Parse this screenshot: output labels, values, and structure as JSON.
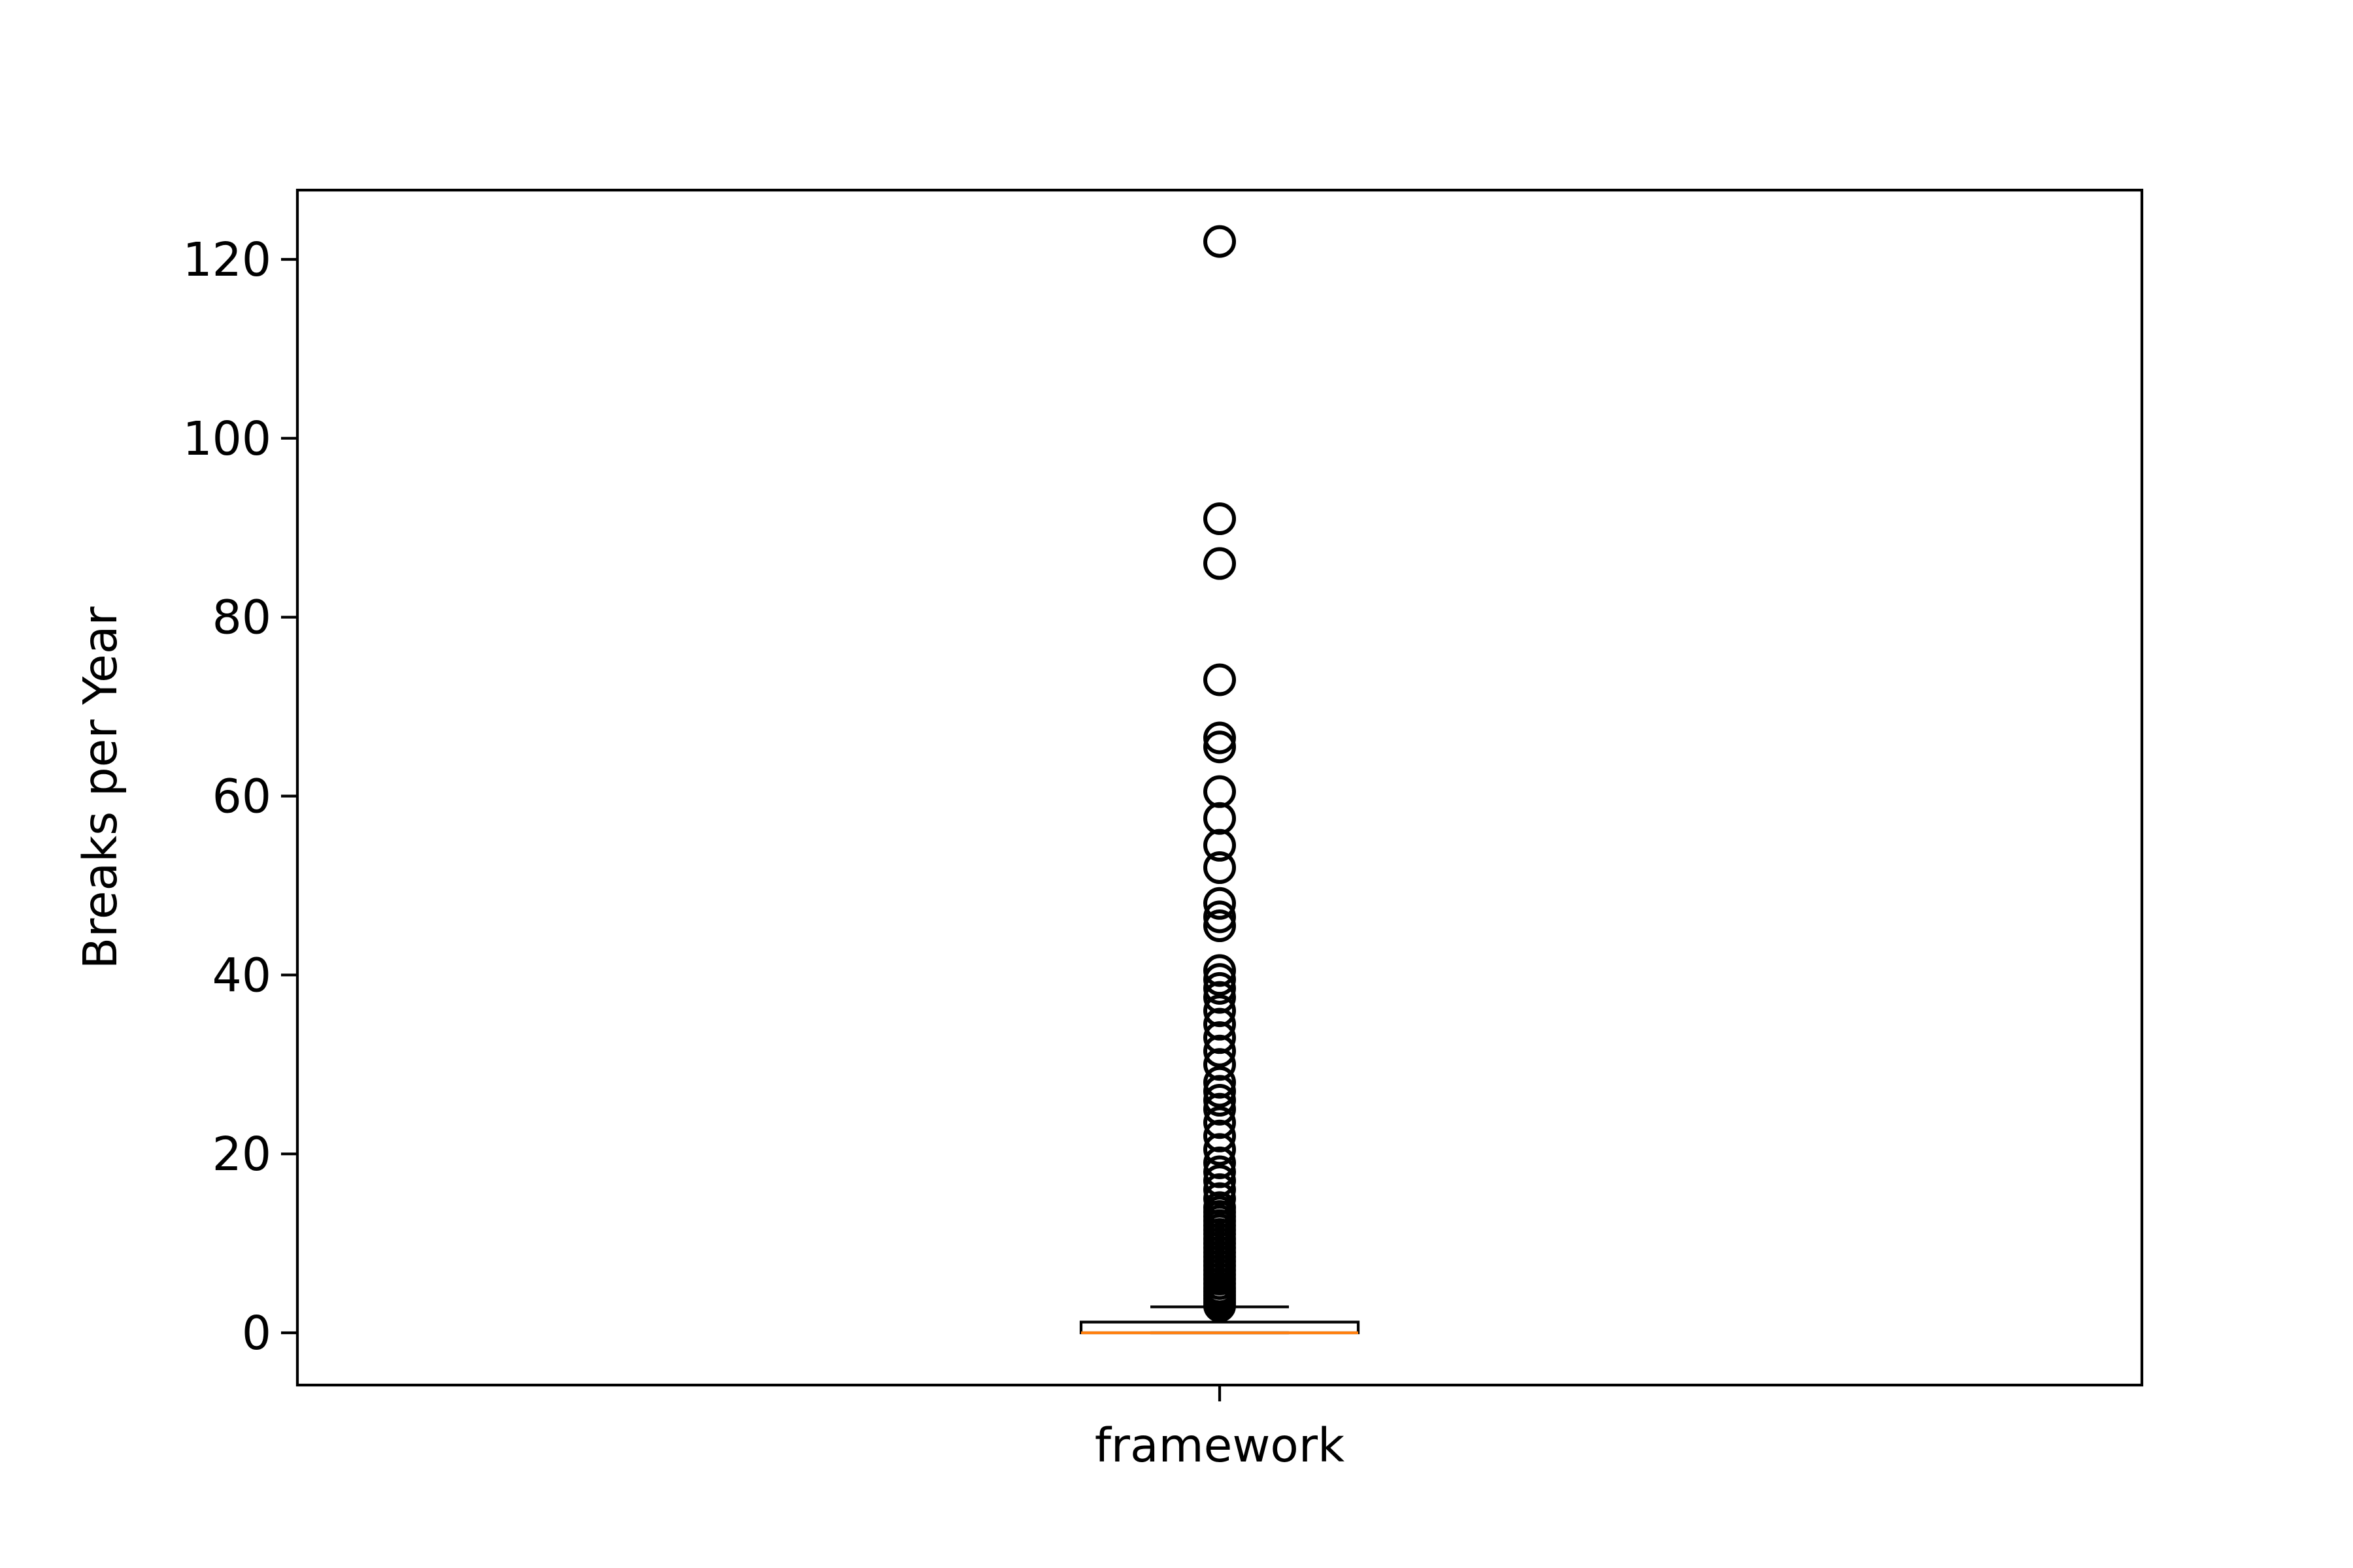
{
  "chart_data": {
    "type": "box",
    "title": "",
    "xlabel": "",
    "ylabel": "Breaks per Year",
    "categories": [
      "framework"
    ],
    "ylim": [
      -6,
      128
    ],
    "yticks": [
      0,
      20,
      40,
      60,
      80,
      100,
      120
    ],
    "grid": false,
    "legend": "none",
    "boxes": [
      {
        "category": "framework",
        "whisker_low": 0,
        "q1": 0,
        "median": 0,
        "q3": 1.2,
        "whisker_high": 2.9,
        "outliers": [
          3.0,
          3.4,
          3.8,
          4.2,
          4.6,
          5.0,
          5.5,
          6.0,
          6.5,
          7.0,
          7.5,
          8.0,
          8.5,
          9.0,
          9.5,
          10.0,
          10.5,
          11.0,
          11.5,
          12.0,
          12.5,
          13.0,
          13.5,
          14.0,
          15.0,
          16.0,
          17.0,
          18.0,
          19.0,
          20.5,
          22.0,
          23.5,
          25.0,
          26.0,
          27.0,
          28.0,
          30.0,
          31.5,
          33.0,
          34.5,
          36.0,
          37.5,
          38.5,
          39.5,
          40.5,
          45.5,
          46.5,
          48.0,
          52.0,
          54.5,
          57.5,
          60.5,
          65.5,
          66.5,
          73.0,
          86.0,
          91.0,
          122.0
        ]
      }
    ],
    "colors": {
      "box": "#000000",
      "median": "#ff7f0e",
      "outlier": "#000000",
      "axes": "#000000"
    }
  }
}
